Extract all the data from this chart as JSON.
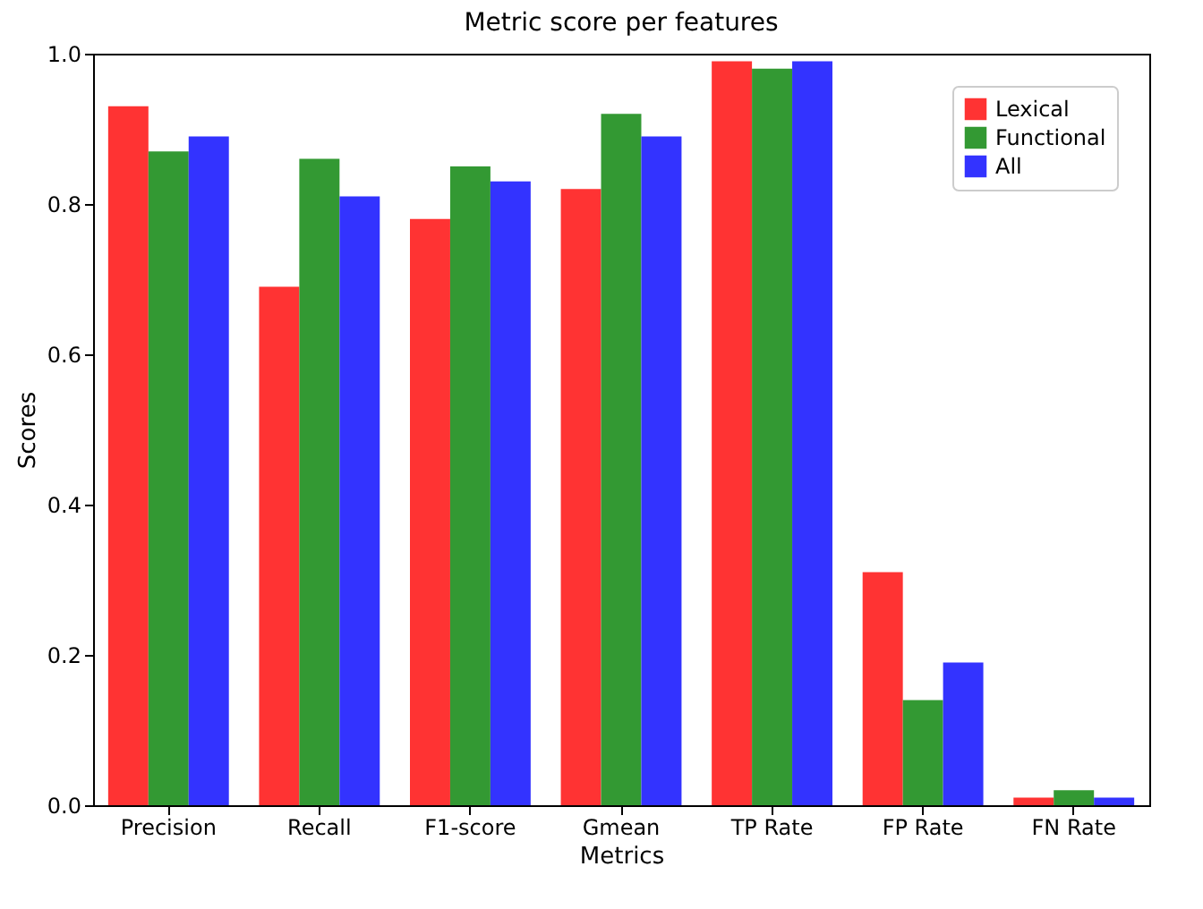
{
  "chart_data": {
    "type": "bar",
    "title": "Metric score per features",
    "xlabel": "Metrics",
    "ylabel": "Scores",
    "categories": [
      "Precision",
      "Recall",
      "F1-score",
      "Gmean",
      "TP Rate",
      "FP Rate",
      "FN Rate"
    ],
    "series": [
      {
        "name": "Lexical",
        "color": "#ff3333",
        "values": [
          0.93,
          0.69,
          0.78,
          0.82,
          0.99,
          0.31,
          0.01
        ]
      },
      {
        "name": "Functional",
        "color": "#339933",
        "values": [
          0.87,
          0.86,
          0.85,
          0.92,
          0.98,
          0.14,
          0.02
        ]
      },
      {
        "name": "All",
        "color": "#3333ff",
        "values": [
          0.89,
          0.81,
          0.83,
          0.89,
          0.99,
          0.19,
          0.01
        ]
      }
    ],
    "ylim": [
      0,
      1
    ],
    "yticks": [
      {
        "value": 0,
        "label": "0.0"
      },
      {
        "value": 0.2,
        "label": "0.2"
      },
      {
        "value": 0.4,
        "label": "0.4"
      },
      {
        "value": 0.6,
        "label": "0.6"
      },
      {
        "value": 0.8,
        "label": "0.8"
      },
      {
        "value": 1,
        "label": "1.0"
      }
    ],
    "grid": false,
    "legend": "top right"
  }
}
